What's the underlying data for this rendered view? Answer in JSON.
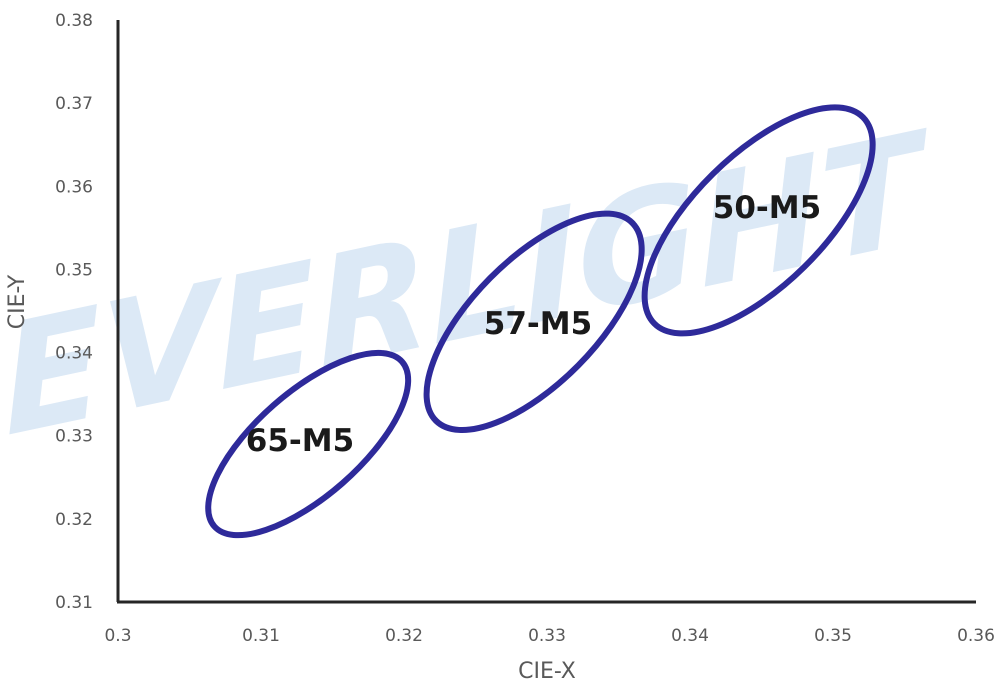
{
  "watermark": {
    "text": "EVERLIGHT",
    "color": "#dce9f6"
  },
  "colors": {
    "ellipse_stroke": "#2e2a9a",
    "axis": "#262626",
    "tick_text": "#595959"
  },
  "chart_data": {
    "type": "scatter",
    "title": "",
    "xlabel": "CIE-X",
    "ylabel": "CIE-Y",
    "xlim": [
      0.3,
      0.36
    ],
    "ylim": [
      0.31,
      0.38
    ],
    "x_ticks": [
      "0.3",
      "0.31",
      "0.32",
      "0.33",
      "0.34",
      "0.35",
      "0.36"
    ],
    "y_ticks": [
      "0.31",
      "0.32",
      "0.33",
      "0.34",
      "0.35",
      "0.36",
      "0.37",
      "0.38"
    ],
    "grid": false,
    "regions": [
      {
        "label": "65-M5",
        "center": [
          0.3133,
          0.329
        ],
        "x_range": [
          0.3066,
          0.32
        ],
        "y_range": [
          0.319,
          0.3392
        ]
      },
      {
        "label": "57-M5",
        "center": [
          0.3291,
          0.3437
        ],
        "x_range": [
          0.3221,
          0.3361
        ],
        "y_range": [
          0.3314,
          0.3557
        ]
      },
      {
        "label": "50-M5",
        "center": [
          0.3448,
          0.3559
        ],
        "x_range": [
          0.3374,
          0.3523
        ],
        "y_range": [
          0.3432,
          0.3685
        ]
      }
    ]
  }
}
